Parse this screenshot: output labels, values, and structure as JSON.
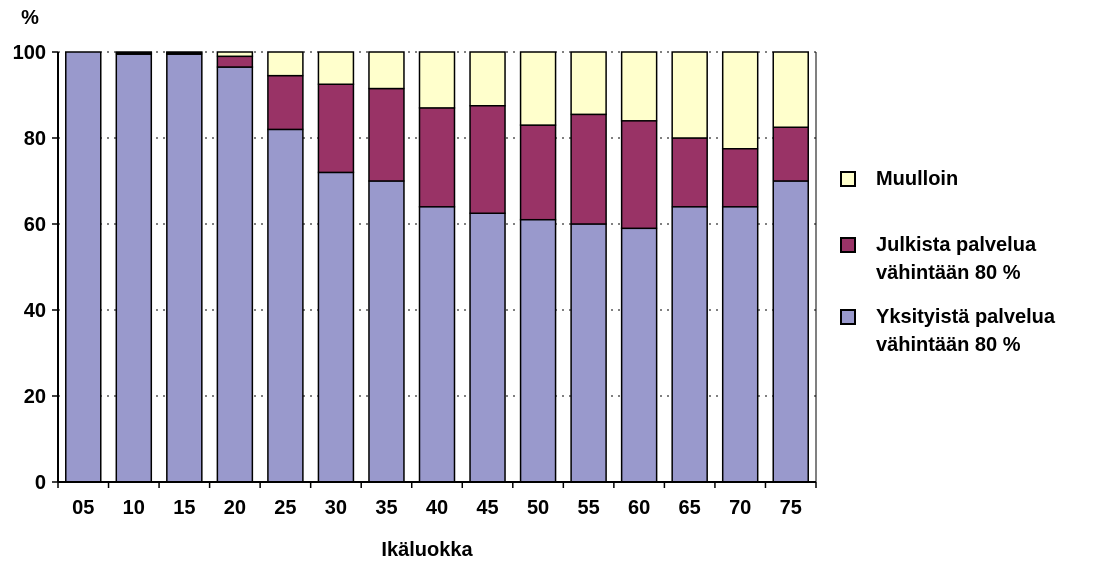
{
  "chart_data": {
    "type": "bar",
    "stacked": true,
    "title": "",
    "ylabel": "%",
    "xlabel": "Ikäluokka",
    "ylim": [
      0,
      100
    ],
    "yticks": [
      0,
      20,
      40,
      60,
      80,
      100
    ],
    "grid": "horizontal dotted",
    "legend_position": "right",
    "categories": [
      "05",
      "10",
      "15",
      "20",
      "25",
      "30",
      "35",
      "40",
      "45",
      "50",
      "55",
      "60",
      "65",
      "70",
      "75"
    ],
    "series": [
      {
        "name": "Yksityistä palvelua vähintään 80 %",
        "color": "#9999cc",
        "values": [
          100,
          99.5,
          99.5,
          96.5,
          82,
          72,
          70,
          64,
          62.5,
          61,
          60,
          59,
          64,
          64,
          70
        ]
      },
      {
        "name": "Julkista palvelua vähintään 80 %",
        "color": "#993366",
        "values": [
          0,
          0.3,
          0.3,
          2.5,
          12.5,
          20.5,
          21.5,
          23,
          25,
          22,
          25.5,
          25,
          16,
          13.5,
          12.5
        ]
      },
      {
        "name": "Muulloin",
        "color": "#ffffcc",
        "values": [
          0,
          0.2,
          0.2,
          1,
          5.5,
          7.5,
          8.5,
          13,
          12.5,
          17,
          14.5,
          16,
          20,
          22.5,
          17.5
        ]
      }
    ]
  }
}
